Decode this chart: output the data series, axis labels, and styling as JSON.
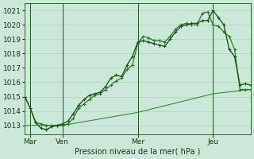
{
  "bg_color": "#cce8d8",
  "grid_color": "#aaccbb",
  "line_color1": "#1a5c1a",
  "line_color2": "#2d7a2d",
  "line_color3": "#3a8a3a",
  "xlabel": "Pression niveau de la mer( hPa )",
  "xlim": [
    0,
    21
  ],
  "ylim": [
    1012.4,
    1021.5
  ],
  "yticks": [
    1013,
    1014,
    1015,
    1016,
    1017,
    1018,
    1019,
    1020,
    1021
  ],
  "xtick_positions": [
    0.5,
    3.5,
    10.5,
    17.5
  ],
  "xtick_labels": [
    "Mar",
    "Ven",
    "Mer",
    "Jeu"
  ],
  "vline_positions": [
    0.5,
    3.5,
    10.5,
    17.5
  ],
  "series1_x": [
    0,
    0.5,
    1,
    1.5,
    2,
    2.5,
    3,
    3.5,
    4,
    4.5,
    5,
    5.5,
    6,
    6.5,
    7,
    7.5,
    8,
    8.5,
    9,
    9.5,
    10,
    10.5,
    11,
    11.5,
    12,
    12.5,
    13,
    13.5,
    14,
    14.5,
    15,
    15.5,
    16,
    16.5,
    17,
    17.5,
    18,
    18.5,
    19,
    19.5,
    20,
    20.5,
    21
  ],
  "series1_y": [
    1015.0,
    1014.2,
    1013.2,
    1012.8,
    1012.7,
    1012.9,
    1013.0,
    1013.1,
    1013.3,
    1013.8,
    1014.4,
    1014.8,
    1015.1,
    1015.2,
    1015.3,
    1015.7,
    1016.3,
    1016.5,
    1016.4,
    1017.2,
    1017.8,
    1018.8,
    1018.9,
    1018.8,
    1018.7,
    1018.6,
    1018.5,
    1019.0,
    1019.5,
    1019.9,
    1020.0,
    1020.1,
    1020.1,
    1020.3,
    1020.3,
    1021.0,
    1020.5,
    1020.0,
    1018.3,
    1017.8,
    1015.8,
    1015.9,
    1015.8
  ],
  "series2_x": [
    0,
    0.5,
    1,
    1.5,
    2,
    2.5,
    3,
    3.5,
    4,
    4.5,
    5,
    5.5,
    6,
    6.5,
    7,
    7.5,
    8,
    8.5,
    9,
    9.5,
    10,
    10.5,
    11,
    11.5,
    12,
    12.5,
    13,
    13.5,
    14,
    14.5,
    15,
    15.5,
    16,
    16.5,
    17,
    17.5,
    18,
    18.5,
    19,
    19.5,
    20,
    20.5,
    21
  ],
  "series2_y": [
    1015.0,
    1014.2,
    1013.2,
    1013.1,
    1013.0,
    1013.0,
    1013.0,
    1013.0,
    1013.1,
    1013.5,
    1014.2,
    1014.5,
    1014.8,
    1015.1,
    1015.2,
    1015.5,
    1015.8,
    1016.1,
    1016.3,
    1016.9,
    1017.2,
    1018.7,
    1019.2,
    1019.1,
    1018.9,
    1018.9,
    1018.8,
    1019.2,
    1019.7,
    1020.0,
    1020.1,
    1020.0,
    1020.0,
    1020.8,
    1020.9,
    1020.0,
    1019.9,
    1019.5,
    1019.2,
    1018.3,
    1015.5,
    1015.5,
    1015.5
  ],
  "series3_x": [
    0,
    3.5,
    10.5,
    17.5,
    21
  ],
  "series3_y": [
    1013.0,
    1013.0,
    1013.9,
    1015.2,
    1015.5
  ]
}
